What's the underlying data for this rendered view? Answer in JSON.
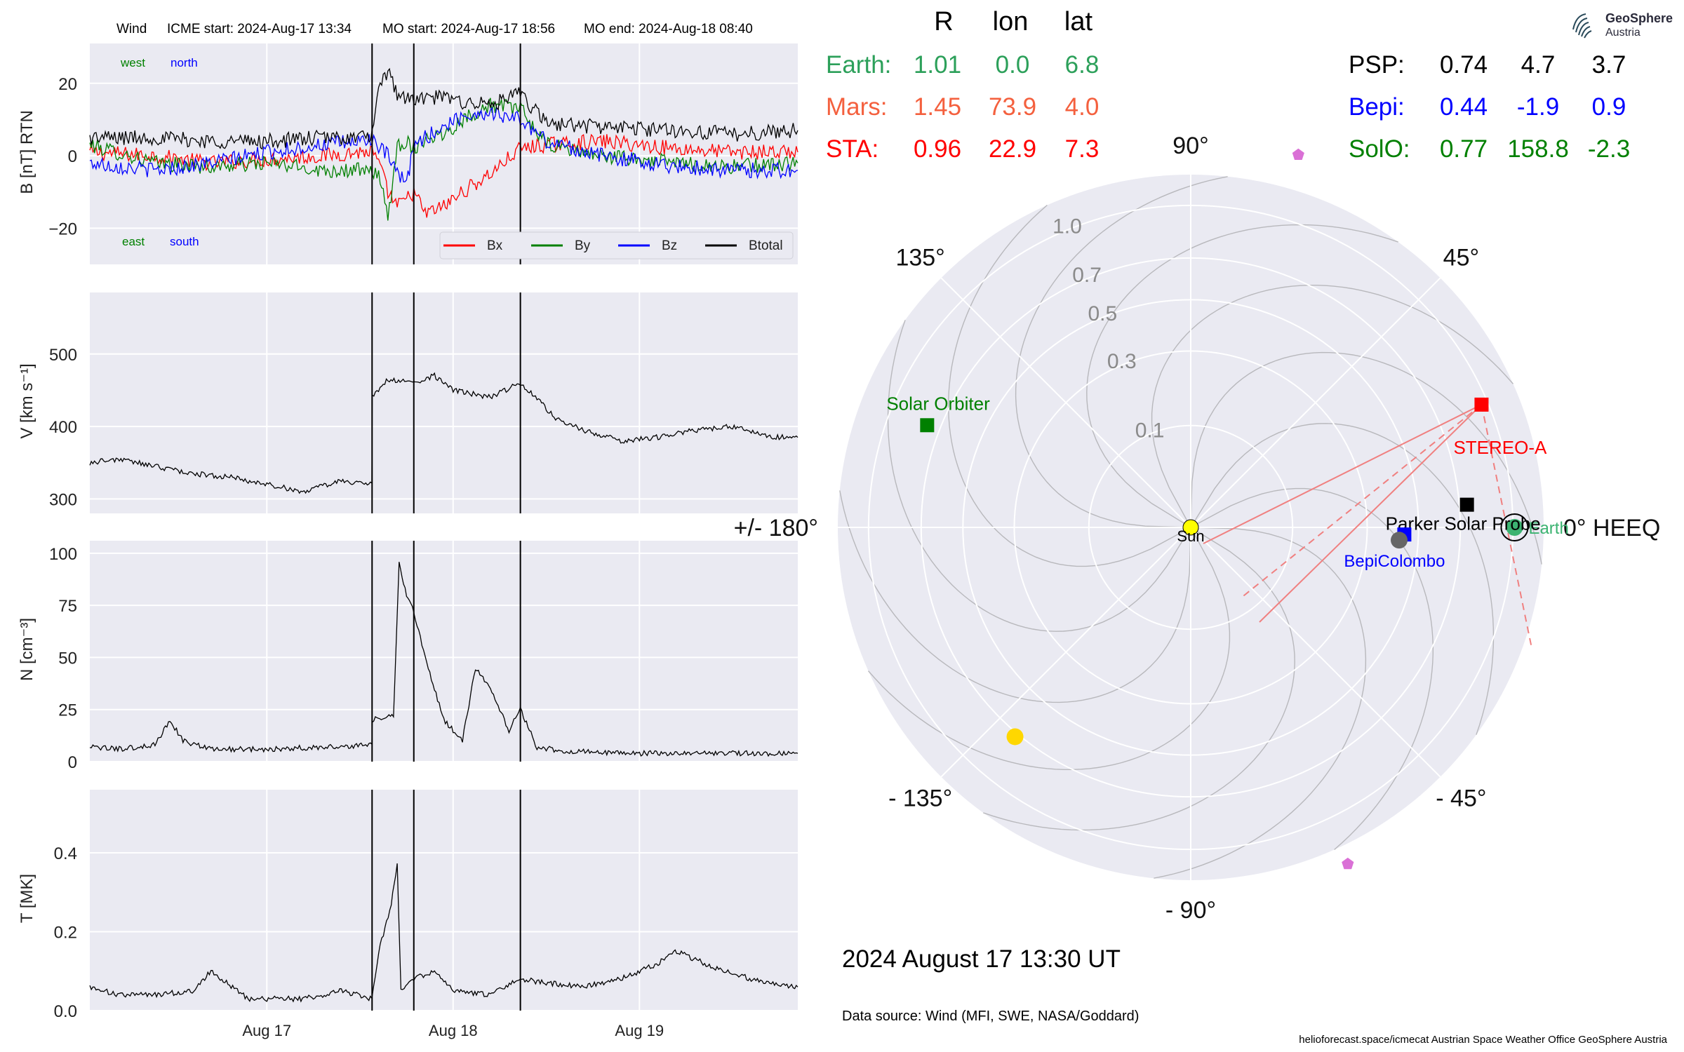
{
  "header": {
    "spacecraft": "Wind",
    "icme_start": "ICME start: 2024-Aug-17 13:34",
    "mo_start": "MO start: 2024-Aug-17 18:56",
    "mo_end": "MO end: 2024-Aug-18 08:40"
  },
  "logo": {
    "name": "GeoSphere",
    "sub": "Austria"
  },
  "position_table": {
    "columns": [
      "R",
      "lon",
      "lat"
    ],
    "left_rows": [
      {
        "label": "Earth:",
        "R": "1.01",
        "lon": "0.0",
        "lat": "6.8",
        "color": "#2ca05a"
      },
      {
        "label": "Mars:",
        "R": "1.45",
        "lon": "73.9",
        "lat": "4.0",
        "color": "#f4603e"
      },
      {
        "label": "STA:",
        "R": "0.96",
        "lon": "22.9",
        "lat": "7.3",
        "color": "#ff0000"
      }
    ],
    "right_rows": [
      {
        "label": "PSP:",
        "R": "0.74",
        "lon": "4.7",
        "lat": "3.7",
        "color": "#000000"
      },
      {
        "label": "Bepi:",
        "R": "0.44",
        "lon": "-1.9",
        "lat": "0.9",
        "color": "#0000ff"
      },
      {
        "label": "SolO:",
        "R": "0.77",
        "lon": "158.8",
        "lat": "-2.3",
        "color": "#008000"
      }
    ]
  },
  "date_label": "2024 August 17  13:30 UT",
  "data_source": "Data source: Wind (MFI, SWE, NASA/Goddard)",
  "footer": "helioforecast.space/icmecat   Austrian Space Weather Office   GeoSphere Austria",
  "colors": {
    "panel_bg": "#eaeaf2",
    "bx": "#ff0000",
    "by": "#008000",
    "bz": "#0000ff",
    "btotal": "#000000"
  },
  "chart_data": [
    {
      "type": "line",
      "panel": "magnetic_field",
      "ylabel": "B [nT] RTN",
      "ylim": [
        -30,
        31
      ],
      "yticks": [
        20,
        0,
        -20
      ],
      "ytick_labels": [
        "20",
        "0",
        "−20"
      ],
      "xlim": [
        -0.95,
        2.85
      ],
      "xticks_days": [
        0,
        1,
        2
      ],
      "xtick_labels": [
        "Aug 17",
        "Aug 18",
        "Aug 19"
      ],
      "event_lines_days": [
        0.565,
        0.789,
        1.361
      ],
      "corner_labels": {
        "west": "west",
        "north": "north",
        "east": "east",
        "south": "south"
      },
      "legend": {
        "placement": "lower-right",
        "entries": [
          "Bx",
          "By",
          "Bz",
          "Btotal"
        ]
      },
      "series": [
        {
          "name": "Bx",
          "color": "#ff0000",
          "x": [
            -0.95,
            -0.6,
            -0.3,
            0.0,
            0.3,
            0.5,
            0.565,
            0.6,
            0.65,
            0.7,
            0.75,
            0.789,
            0.85,
            0.95,
            1.05,
            1.2,
            1.361,
            1.5,
            1.8,
            2.2,
            2.5,
            2.85
          ],
          "y": [
            1,
            0,
            -2,
            -1,
            0,
            1,
            1,
            -2,
            -10,
            -14,
            -12,
            -10,
            -16,
            -14,
            -10,
            -5,
            2,
            3,
            4,
            2,
            1,
            1
          ]
        },
        {
          "name": "By",
          "color": "#008000",
          "x": [
            -0.95,
            -0.6,
            -0.3,
            0.0,
            0.3,
            0.5,
            0.565,
            0.6,
            0.65,
            0.7,
            0.75,
            0.789,
            0.85,
            0.95,
            1.05,
            1.2,
            1.361,
            1.5,
            1.8,
            2.2,
            2.5,
            2.85
          ],
          "y": [
            3,
            -2,
            -3,
            -2,
            -4,
            -4,
            -5,
            -4,
            -18,
            3,
            4,
            2,
            5,
            6,
            10,
            14,
            13,
            3,
            0,
            -2,
            -3,
            -2
          ]
        },
        {
          "name": "Bz",
          "color": "#0000ff",
          "x": [
            -0.95,
            -0.6,
            -0.3,
            0.0,
            0.3,
            0.5,
            0.565,
            0.6,
            0.65,
            0.7,
            0.75,
            0.789,
            0.85,
            0.95,
            1.05,
            1.2,
            1.361,
            1.5,
            1.8,
            2.2,
            2.5,
            2.85
          ],
          "y": [
            -2,
            -4,
            -2,
            1,
            3,
            4,
            5,
            2,
            0,
            -5,
            -8,
            3,
            5,
            8,
            11,
            12,
            10,
            4,
            0,
            -3,
            -4,
            -4
          ]
        },
        {
          "name": "Btotal",
          "color": "#000000",
          "x": [
            -0.95,
            -0.6,
            -0.3,
            0.0,
            0.3,
            0.5,
            0.565,
            0.6,
            0.65,
            0.7,
            0.75,
            0.789,
            0.85,
            0.95,
            1.05,
            1.2,
            1.361,
            1.5,
            1.8,
            2.2,
            2.5,
            2.85
          ],
          "y": [
            5,
            5,
            4,
            4,
            5,
            5,
            6,
            17,
            24,
            17,
            16,
            15,
            16,
            16,
            15,
            14,
            17,
            9,
            8,
            7,
            6,
            7
          ]
        }
      ]
    },
    {
      "type": "line",
      "panel": "speed",
      "ylabel": "V [km s⁻¹]",
      "ylim": [
        280,
        585
      ],
      "yticks": [
        500,
        400,
        300
      ],
      "ytick_labels": [
        "500",
        "400",
        "300"
      ],
      "xlim": [
        -0.95,
        2.85
      ],
      "xticks_days": [
        0,
        1,
        2
      ],
      "event_lines_days": [
        0.565,
        0.789,
        1.361
      ],
      "series": [
        {
          "name": "V",
          "color": "#000000",
          "x": [
            -0.95,
            -0.8,
            -0.6,
            -0.4,
            -0.2,
            0.0,
            0.2,
            0.4,
            0.564,
            0.566,
            0.65,
            0.789,
            0.9,
            1.0,
            1.2,
            1.361,
            1.45,
            1.55,
            1.7,
            1.9,
            2.1,
            2.3,
            2.5,
            2.7,
            2.85
          ],
          "y": [
            350,
            355,
            345,
            335,
            330,
            320,
            310,
            325,
            320,
            440,
            465,
            460,
            470,
            450,
            440,
            460,
            440,
            410,
            395,
            380,
            385,
            395,
            400,
            385,
            385
          ]
        }
      ]
    },
    {
      "type": "line",
      "panel": "density",
      "ylabel": "N [cm⁻³]",
      "ylim": [
        0,
        106
      ],
      "yticks": [
        100,
        75,
        50,
        25,
        0
      ],
      "ytick_labels": [
        "100",
        "75",
        "50",
        "25",
        "0"
      ],
      "xlim": [
        -0.95,
        2.85
      ],
      "xticks_days": [
        0,
        1,
        2
      ],
      "event_lines_days": [
        0.565,
        0.789,
        1.361
      ],
      "series": [
        {
          "name": "N",
          "color": "#000000",
          "x": [
            -0.95,
            -0.8,
            -0.6,
            -0.52,
            -0.45,
            -0.3,
            0.0,
            0.3,
            0.564,
            0.566,
            0.68,
            0.71,
            0.75,
            0.789,
            0.85,
            0.95,
            1.05,
            1.12,
            1.2,
            1.3,
            1.361,
            1.45,
            1.6,
            2.0,
            2.4,
            2.85
          ],
          "y": [
            7,
            6,
            8,
            20,
            10,
            6,
            6,
            7,
            8,
            20,
            22,
            95,
            80,
            72,
            50,
            20,
            10,
            45,
            35,
            15,
            25,
            7,
            5,
            4,
            4,
            4
          ]
        }
      ]
    },
    {
      "type": "line",
      "panel": "temperature",
      "ylabel": "T [MK]",
      "ylim": [
        0,
        0.56
      ],
      "yticks": [
        0.4,
        0.2,
        0.0
      ],
      "ytick_labels": [
        "0.4",
        "0.2",
        "0.0"
      ],
      "xlim": [
        -0.95,
        2.85
      ],
      "xticks_days": [
        0,
        1,
        2
      ],
      "xtick_labels": [
        "Aug 17",
        "Aug 18",
        "Aug 19"
      ],
      "event_lines_days": [
        0.565,
        0.789,
        1.361
      ],
      "series": [
        {
          "name": "T",
          "color": "#000000",
          "x": [
            -0.95,
            -0.8,
            -0.6,
            -0.4,
            -0.3,
            -0.1,
            0.2,
            0.4,
            0.564,
            0.6,
            0.66,
            0.7,
            0.72,
            0.789,
            0.9,
            1.0,
            1.2,
            1.361,
            1.5,
            1.7,
            1.9,
            2.1,
            2.2,
            2.4,
            2.6,
            2.85
          ],
          "y": [
            0.06,
            0.04,
            0.04,
            0.05,
            0.1,
            0.03,
            0.03,
            0.05,
            0.03,
            0.15,
            0.25,
            0.37,
            0.05,
            0.08,
            0.1,
            0.05,
            0.04,
            0.08,
            0.07,
            0.06,
            0.08,
            0.12,
            0.15,
            0.11,
            0.08,
            0.06
          ]
        }
      ]
    },
    {
      "type": "scatter",
      "panel": "polar_positions",
      "frame": "HEEQ",
      "angle_labels": [
        {
          "deg": 0,
          "text": "0° HEEQ"
        },
        {
          "deg": 45,
          "text": "45°"
        },
        {
          "deg": 90,
          "text": "90°"
        },
        {
          "deg": 135,
          "text": "135°"
        },
        {
          "deg": 180,
          "text": "+/- 180°"
        },
        {
          "deg": -135,
          "text": "- 135°"
        },
        {
          "deg": -90,
          "text": "- 90°"
        },
        {
          "deg": -45,
          "text": "- 45°"
        }
      ],
      "radial_scale": "sqrt",
      "rmax": 1.2,
      "radial_rings": [
        0.1,
        0.3,
        0.5,
        0.7,
        1.0
      ],
      "radial_labels": [
        "0.1",
        "0.3",
        "0.5",
        "0.7",
        "1.0"
      ],
      "objects": [
        {
          "name": "Sun",
          "label": "Sun",
          "r": 0.0,
          "lon": 0.0,
          "marker": "circle",
          "color": "#ffff00"
        },
        {
          "name": "Earth",
          "label": "Earth",
          "r": 1.01,
          "lon": 0.0,
          "marker": "circle",
          "color": "#3cb371"
        },
        {
          "name": "STEREO-A",
          "label": "STEREO-A",
          "r": 0.96,
          "lon": 22.9,
          "marker": "square",
          "color": "#ff0000"
        },
        {
          "name": "Parker Solar Probe",
          "label": "Parker Solar Probe",
          "r": 0.74,
          "lon": 4.7,
          "marker": "square",
          "color": "#000000"
        },
        {
          "name": "BepiColombo",
          "label": "BepiColombo",
          "r": 0.44,
          "lon": -1.9,
          "marker": "square",
          "color": "#0000ff"
        },
        {
          "name": "Solar Orbiter",
          "label": "Solar Orbiter",
          "r": 0.77,
          "lon": 158.8,
          "marker": "square",
          "color": "#008000"
        },
        {
          "name": "Mercury",
          "label": "",
          "r": 0.42,
          "lon": -3.5,
          "marker": "circle",
          "color": "#666666"
        },
        {
          "name": "Venus",
          "label": "",
          "r": 0.72,
          "lon": -130.0,
          "marker": "circle",
          "color": "#ffd700"
        },
        {
          "name": "Mars",
          "label": "",
          "r": 1.45,
          "lon": 73.9,
          "marker": "pentagon",
          "color": "#da70d6"
        },
        {
          "name": "pentagon-lower",
          "label": "",
          "r": 1.33,
          "lon": -65.0,
          "marker": "pentagon",
          "color": "#da70d6"
        }
      ]
    }
  ]
}
